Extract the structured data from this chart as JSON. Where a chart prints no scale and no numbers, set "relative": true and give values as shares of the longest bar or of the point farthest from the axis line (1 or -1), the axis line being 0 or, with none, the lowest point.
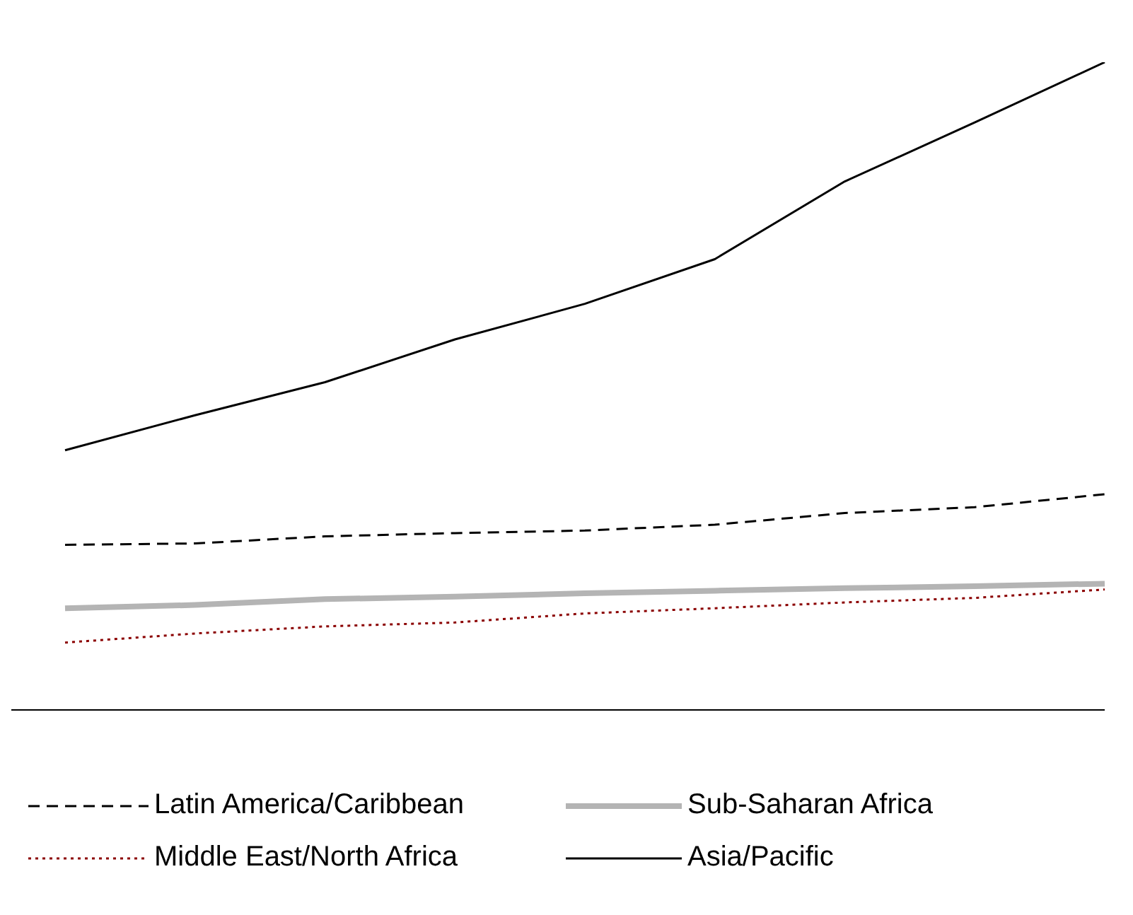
{
  "chart_data": {
    "type": "line",
    "relative": true,
    "categories": [
      null,
      null,
      null,
      null,
      null,
      null,
      null,
      null,
      null
    ],
    "legend": "bottom",
    "marker": "none",
    "grid": false,
    "series": [
      {
        "name": "Latin America/Caribbean",
        "color": "#000000",
        "line_style": "dashed",
        "values": [
          0.255,
          0.257,
          0.268,
          0.273,
          0.277,
          0.286,
          0.304,
          0.313,
          0.333
        ]
      },
      {
        "name": "Sub-Saharan Africa",
        "color": "#b4b4b4",
        "line_style": "solid",
        "values": [
          0.157,
          0.162,
          0.171,
          0.175,
          0.18,
          0.184,
          0.188,
          0.191,
          0.195
        ]
      },
      {
        "name": "Middle East/North Africa",
        "color": "#8b0000",
        "line_style": "dotted",
        "values": [
          0.104,
          0.118,
          0.129,
          0.135,
          0.149,
          0.157,
          0.166,
          0.173,
          0.186
        ]
      },
      {
        "name": "Asia/Pacific",
        "color": "#000000",
        "line_style": "solid",
        "values": [
          0.401,
          0.455,
          0.506,
          0.572,
          0.627,
          0.696,
          0.816,
          0.907,
          1
        ]
      }
    ]
  }
}
